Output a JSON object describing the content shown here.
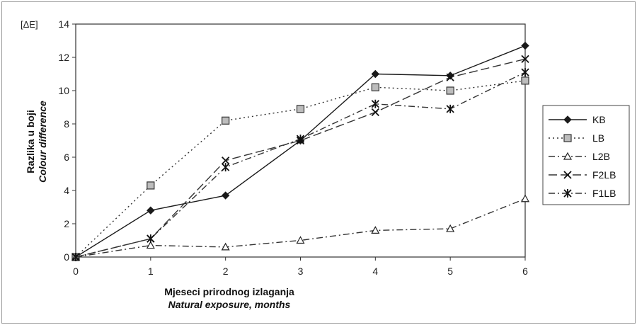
{
  "chart_data": {
    "type": "line",
    "x": [
      0,
      1,
      2,
      3,
      4,
      5,
      6
    ],
    "xlim": [
      0,
      6
    ],
    "ylim": [
      0,
      14
    ],
    "x_ticks": [
      "0",
      "1",
      "2",
      "3",
      "4",
      "5",
      "6"
    ],
    "y_ticks": [
      "0",
      "2",
      "4",
      "6",
      "8",
      "10",
      "12",
      "14"
    ],
    "y_unit": "[ΔE]",
    "xlabel": "Mjeseci prirodnog izlaganja",
    "xlabel_sub": "Natural exposure, months",
    "ylabel": "Razlika u boji",
    "ylabel_sub": "Colour difference",
    "grid": false,
    "legend_position": "right",
    "series": [
      {
        "name": "KB",
        "values": [
          0,
          2.8,
          3.7,
          7.0,
          11.0,
          10.9,
          12.7
        ],
        "color": "#1a1a1a",
        "dash": "solid",
        "marker": "diamond"
      },
      {
        "name": "LB",
        "values": [
          0,
          4.3,
          8.2,
          8.9,
          10.2,
          10.0,
          10.6
        ],
        "color": "#333333",
        "dash": "dotted",
        "marker": "square"
      },
      {
        "name": "L2B",
        "values": [
          0,
          0.7,
          0.6,
          1.0,
          1.6,
          1.7,
          3.5
        ],
        "color": "#333333",
        "dash": "dashdot",
        "marker": "triangle"
      },
      {
        "name": "F2LB",
        "values": [
          0,
          1.1,
          5.8,
          7.0,
          8.7,
          10.8,
          11.9
        ],
        "color": "#333333",
        "dash": "longdash",
        "marker": "x"
      },
      {
        "name": "F1LB",
        "values": [
          0,
          1.1,
          5.4,
          7.1,
          9.2,
          8.9,
          11.1
        ],
        "color": "#333333",
        "dash": "dashdot",
        "marker": "star"
      }
    ]
  }
}
